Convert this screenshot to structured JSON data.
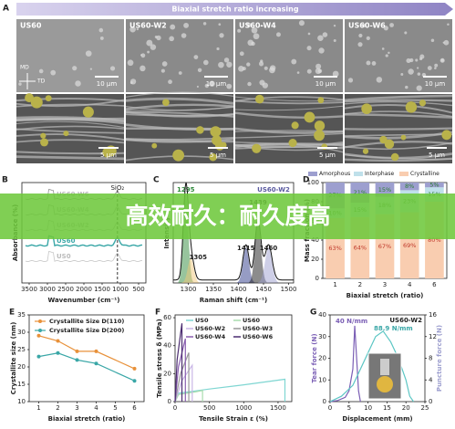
{
  "banner": "高效耐久：耐久度高",
  "panels": {
    "A": {
      "label": "A",
      "arrow": "Biaxial stretch ratio increasing",
      "samples": [
        "US60",
        "US60-W2",
        "US60-W4",
        "US60-W6"
      ],
      "scale_top": "10 µm",
      "scale_bottom": "5 µm",
      "md": "MD",
      "td": "TD"
    }
  },
  "chart_data": [
    {
      "type": "spectrum",
      "panel": "B",
      "xlabel": "Wavenumber (cm⁻¹)",
      "ylabel": "Absorbance (%)",
      "xlim": [
        3700,
        300
      ],
      "xticks": [
        3500,
        3000,
        2500,
        2000,
        1500,
        1000,
        500
      ],
      "series_labels": [
        "US60-W6",
        "US60-W4",
        "US60-W2",
        "US60",
        "US0"
      ],
      "annotation": "SiO₂"
    },
    {
      "type": "raman",
      "panel": "C",
      "xlabel": "Raman shift (cm⁻¹)",
      "ylabel": "Intensity",
      "sample": "US60-W2",
      "xlim": [
        1270,
        1510
      ],
      "xticks": [
        1300,
        1350,
        1400,
        1450,
        1500
      ],
      "peaks": [
        1295,
        1305,
        1415,
        1439,
        1460
      ]
    },
    {
      "type": "stacked_bar",
      "panel": "D",
      "xlabel": "Biaxial stretch (ratio)",
      "ylabel": "Mass fraction (%)",
      "categories": [
        "1",
        "2",
        "3",
        "4",
        "6"
      ],
      "ylim": [
        0,
        100
      ],
      "yticks": [
        0,
        20,
        40,
        60,
        80,
        100
      ],
      "legend": "top",
      "series": [
        {
          "name": "Crystalline",
          "color": "#f9cdb0",
          "values": [
            63,
            64,
            67,
            69,
            80
          ],
          "value_labels": [
            "63%",
            "64%",
            "67%",
            "69%",
            "80%"
          ]
        },
        {
          "name": "Interphase",
          "color": "#bfe0ea",
          "values": [
            10,
            15,
            18,
            23,
            15
          ],
          "value_labels": [
            "10%",
            "15%",
            "18%",
            "23%",
            "15%"
          ]
        },
        {
          "name": "Amorphous",
          "color": "#9d9fcf",
          "values": [
            27,
            21,
            15,
            8,
            5
          ],
          "value_labels": [
            "27%",
            "21%",
            "15%",
            "8%",
            "5%"
          ]
        }
      ]
    },
    {
      "type": "line",
      "panel": "E",
      "xlabel": "Biaxial stretch (ratio)",
      "ylabel": "Crystallite size (nm)",
      "x": [
        1,
        2,
        3,
        4,
        6
      ],
      "xlim": [
        0.5,
        6.5
      ],
      "xticks": [
        1,
        2,
        3,
        4,
        5,
        6
      ],
      "ylim": [
        10,
        35
      ],
      "yticks": [
        10,
        15,
        20,
        25,
        30,
        35
      ],
      "legend": "top",
      "series": [
        {
          "name": "Crystallite Size D(110)",
          "color": "#e8913a",
          "values": [
            29,
            27.5,
            24.5,
            24.5,
            19.5
          ]
        },
        {
          "name": "Crystallite Size D(200)",
          "color": "#3aa7a7",
          "values": [
            23,
            24,
            22,
            21,
            16
          ]
        }
      ]
    },
    {
      "type": "xy_line",
      "panel": "F",
      "xlabel": "Tensile Strain ε (%)",
      "ylabel": "Tensile stress δ (MPa)",
      "xlim": [
        0,
        1700
      ],
      "xticks": [
        0,
        500,
        1000,
        1500
      ],
      "ylim": [
        0,
        62
      ],
      "yticks": [
        0,
        20,
        40,
        60
      ],
      "legend": "top",
      "series": [
        {
          "name": "US0",
          "color": "#7fd6d2",
          "x": [
            0,
            50,
            500,
            1000,
            1600,
            1600
          ],
          "values": [
            0,
            6,
            9,
            12,
            16,
            0
          ]
        },
        {
          "name": "US60",
          "color": "#a9dcae",
          "x": [
            0,
            50,
            300,
            400,
            400
          ],
          "values": [
            0,
            5,
            7,
            8,
            0
          ]
        },
        {
          "name": "US60-W2",
          "color": "#c9b6e6",
          "x": [
            0,
            100,
            250,
            250
          ],
          "values": [
            0,
            15,
            26,
            0
          ]
        },
        {
          "name": "US60-W3",
          "color": "#999999",
          "x": [
            0,
            80,
            200,
            200
          ],
          "values": [
            0,
            20,
            35,
            0
          ]
        },
        {
          "name": "US60-W4",
          "color": "#8a5fb0",
          "x": [
            0,
            50,
            150,
            150
          ],
          "values": [
            0,
            25,
            45,
            0
          ]
        },
        {
          "name": "US60-W6",
          "color": "#4b2c70",
          "x": [
            0,
            30,
            100,
            100
          ],
          "values": [
            0,
            30,
            56,
            0
          ]
        }
      ]
    },
    {
      "type": "dual_line",
      "panel": "G",
      "xlabel": "Displacement (mm)",
      "ylabel": "Tear force (N)",
      "y2label": "Puncture force (N)",
      "sample": "US60-W2",
      "xlim": [
        0,
        25
      ],
      "xticks": [
        0,
        5,
        10,
        15,
        20,
        25
      ],
      "ylim": [
        0,
        40
      ],
      "yticks": [
        0,
        10,
        20,
        30,
        40
      ],
      "y2lim": [
        0,
        16
      ],
      "y2ticks": [
        0,
        4,
        8,
        12,
        16
      ],
      "annotations": [
        "40 N/mm",
        "88.9 N/mm"
      ],
      "series": [
        {
          "name": "Tear force",
          "color": "#7b5fb5",
          "x": [
            0,
            2,
            4,
            5,
            6,
            6.5,
            7,
            7.5,
            8
          ],
          "values": [
            0,
            0.5,
            2,
            5,
            15,
            35,
            20,
            5,
            0
          ]
        },
        {
          "name": "Puncture force",
          "color": "#5cc6c4",
          "axis": "y2",
          "x": [
            0,
            3,
            6,
            8,
            10,
            12,
            14,
            16,
            18,
            20,
            21,
            22
          ],
          "values": [
            0,
            1,
            3,
            6,
            9,
            12,
            13,
            11,
            8,
            4,
            1,
            0
          ]
        }
      ]
    }
  ]
}
